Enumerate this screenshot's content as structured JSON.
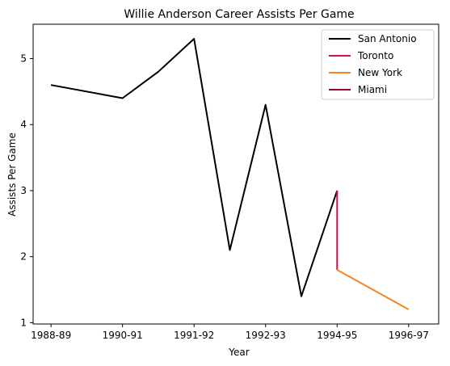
{
  "chart_data": {
    "type": "line",
    "title": "Willie Anderson  Career Assists Per Game",
    "xlabel": "Year",
    "ylabel": "Assists Per Game",
    "x_ticks": [
      {
        "pos": 0,
        "label": "1988-89"
      },
      {
        "pos": 1,
        "label": "1990-91"
      },
      {
        "pos": 2,
        "label": "1991-92"
      },
      {
        "pos": 3,
        "label": "1992-93"
      },
      {
        "pos": 4,
        "label": "1994-95"
      },
      {
        "pos": 5,
        "label": "1996-97"
      }
    ],
    "y_ticks": [
      1,
      2,
      3,
      4,
      5
    ],
    "xlim": [
      -0.25,
      5.42
    ],
    "ylim": [
      0.98,
      5.52
    ],
    "grid": false,
    "legend_position": "top-right",
    "series": [
      {
        "name": "San Antonio",
        "color": "#000000",
        "x": [
          0,
          1,
          1.5,
          2,
          2.5,
          3,
          3.5,
          4
        ],
        "y": [
          4.6,
          4.4,
          4.8,
          5.3,
          2.1,
          4.3,
          1.4,
          3.0
        ]
      },
      {
        "name": "Toronto",
        "color": "#ce1141",
        "x": [
          4,
          4
        ],
        "y": [
          3.0,
          1.8
        ]
      },
      {
        "name": "New York",
        "color": "#f58426",
        "x": [
          4,
          5
        ],
        "y": [
          1.8,
          1.2
        ]
      },
      {
        "name": "Miami",
        "color": "#98002e",
        "x": [],
        "y": []
      }
    ]
  }
}
